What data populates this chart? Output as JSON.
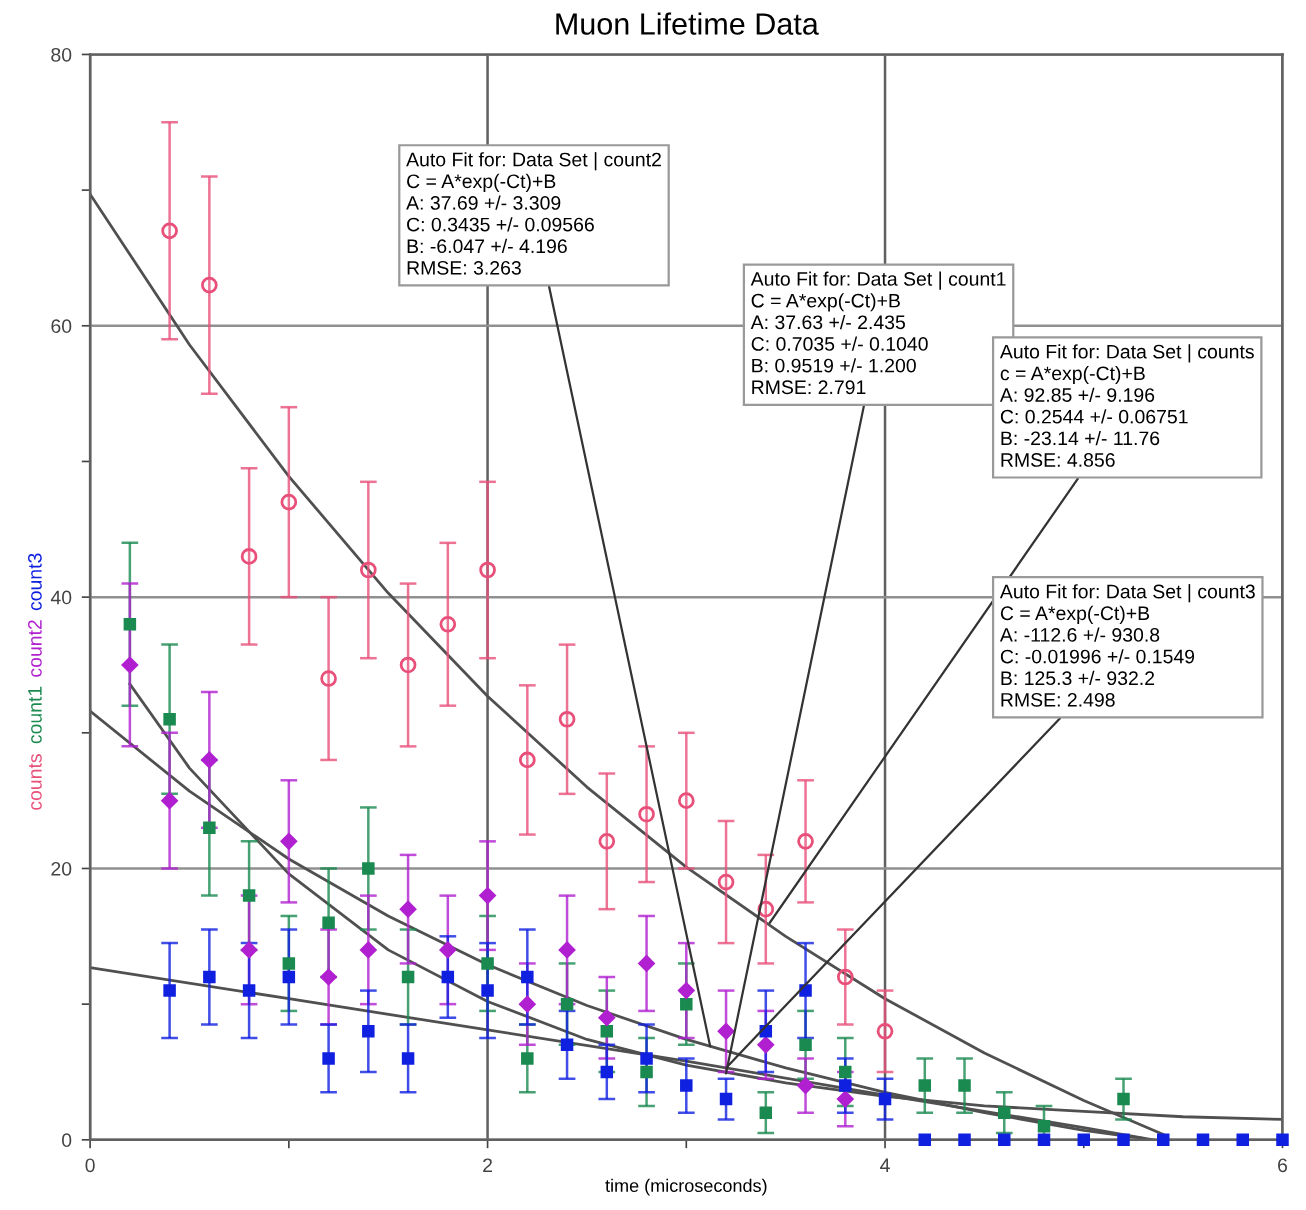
{
  "chart_data": {
    "type": "scatter",
    "title": "Muon Lifetime Data",
    "xlabel": "time (microseconds)",
    "xlim": [
      0,
      6
    ],
    "ylim": [
      0,
      80
    ],
    "xticks": [
      0,
      {
        "value": 1,
        "label": null
      },
      2,
      {
        "value": 3,
        "label": null
      },
      4,
      {
        "value": 5,
        "label": null
      },
      6
    ],
    "yticks": [
      0,
      {
        "value": 10,
        "label": null
      },
      20,
      {
        "value": 30,
        "label": null
      },
      40,
      {
        "value": 50,
        "label": null
      },
      60,
      {
        "value": 70,
        "label": null
      },
      80
    ],
    "grid": true,
    "legend": false,
    "series": [
      {
        "name": "counts",
        "color": "#e8507a",
        "marker": "circle",
        "x": [
          0.4,
          0.6,
          0.8,
          1.0,
          1.2,
          1.4,
          1.6,
          1.8,
          2.0,
          2.2,
          2.4,
          2.6,
          2.8,
          3.0,
          3.2,
          3.4,
          3.6,
          3.8,
          4.0
        ],
        "values": [
          67,
          63,
          43,
          47,
          34,
          42,
          35,
          38,
          42,
          28,
          31,
          22,
          24,
          25,
          19,
          17,
          22,
          12,
          8
        ],
        "errors": [
          8,
          8,
          6.5,
          7,
          6,
          6.5,
          6,
          6,
          6.5,
          5.5,
          5.5,
          5,
          5,
          5,
          4.5,
          4,
          4.5,
          3.5,
          3
        ]
      },
      {
        "name": "count1",
        "color": "#1a8a50",
        "marker": "square",
        "x": [
          0.2,
          0.4,
          0.6,
          0.8,
          1.0,
          1.2,
          1.4,
          1.6,
          1.8,
          2.0,
          2.2,
          2.4,
          2.6,
          2.8,
          3.0,
          3.2,
          3.4,
          3.6,
          3.8,
          4.0,
          4.2,
          4.4,
          4.6,
          4.8,
          5.0,
          5.2
        ],
        "values": [
          38,
          31,
          23,
          18,
          13,
          16,
          20,
          12,
          null,
          13,
          6,
          10,
          8,
          5,
          10,
          null,
          2,
          7,
          5,
          null,
          4,
          4,
          2,
          1,
          null,
          3
        ],
        "errors": [
          6,
          5.5,
          5,
          4,
          3.5,
          4,
          4.5,
          3.5,
          null,
          3.5,
          2.5,
          3,
          3,
          2.5,
          3,
          null,
          1.5,
          2.5,
          2.5,
          null,
          2,
          2,
          1.5,
          1.5,
          null,
          1.5
        ]
      },
      {
        "name": "count2",
        "color": "#b020d0",
        "marker": "diamond",
        "x": [
          0.2,
          0.4,
          0.6,
          0.8,
          1.0,
          1.2,
          1.4,
          1.6,
          1.8,
          2.0,
          2.2,
          2.4,
          2.6,
          2.8,
          3.0,
          3.2,
          3.4,
          3.6,
          3.8
        ],
        "values": [
          35,
          25,
          28,
          14,
          22,
          12,
          14,
          17,
          14,
          18,
          10,
          14,
          9,
          13,
          11,
          8,
          7,
          4,
          3
        ],
        "errors": [
          6,
          5,
          5,
          4,
          4.5,
          3.5,
          4,
          4,
          4,
          4,
          3,
          4,
          3,
          3.5,
          3.5,
          3,
          2.5,
          2,
          2
        ]
      },
      {
        "name": "count3",
        "color": "#1020e0",
        "marker": "square",
        "x": [
          0.4,
          0.6,
          0.8,
          1.0,
          1.2,
          1.4,
          1.6,
          1.8,
          2.0,
          2.2,
          2.4,
          2.6,
          2.8,
          3.0,
          3.2,
          3.4,
          3.6,
          3.8,
          4.0,
          4.2,
          4.4,
          4.6,
          4.8,
          5.0,
          5.2,
          5.4,
          5.6,
          5.8,
          6.0
        ],
        "values": [
          11,
          12,
          11,
          12,
          6,
          8,
          6,
          12,
          11,
          12,
          7,
          5,
          6,
          4,
          3,
          8,
          11,
          4,
          3,
          0,
          0,
          0,
          0,
          0,
          0,
          0,
          0,
          0,
          0
        ],
        "errors": [
          3.5,
          3.5,
          3.5,
          3.5,
          2.5,
          3,
          2.5,
          3,
          3.5,
          3.5,
          2.5,
          2,
          2.5,
          2,
          1.5,
          3,
          3.5,
          2,
          1.5,
          null,
          null,
          null,
          null,
          null,
          null,
          null,
          null,
          null,
          null
        ]
      },
      {
        "type": "line",
        "color": "#505050",
        "x": [
          0,
          0.5,
          1,
          1.5,
          2,
          2.5,
          3,
          3.5,
          4,
          4.5,
          5,
          5.4
        ],
        "values": [
          69.7,
          58.6,
          48.9,
          40.3,
          32.7,
          26.0,
          20.1,
          15.0,
          10.4,
          6.4,
          2.9,
          0.4
        ]
      },
      {
        "type": "line",
        "color": "#505050",
        "x": [
          0.2,
          0.5,
          1,
          1.5,
          2,
          2.5,
          3,
          3.5,
          4,
          4.5,
          5,
          5.5,
          6
        ],
        "values": [
          33.6,
          27.4,
          19.6,
          14.0,
          10.2,
          7.4,
          5.5,
          4.2,
          3.2,
          2.5,
          2.1,
          1.7,
          1.5
        ]
      },
      {
        "type": "line",
        "color": "#505050",
        "x": [
          0,
          0.5,
          1,
          1.5,
          2,
          2.5,
          3,
          3.5,
          4,
          4.5,
          5,
          5.3
        ],
        "values": [
          31.6,
          25.7,
          20.7,
          16.5,
          12.9,
          9.9,
          7.4,
          5.3,
          3.5,
          2.0,
          0.7,
          0.1
        ]
      },
      {
        "type": "line",
        "color": "#505050",
        "x": [
          0,
          1,
          2,
          3,
          4,
          5,
          5.35
        ],
        "values": [
          12.7,
          10.4,
          8.1,
          5.8,
          3.3,
          0.9,
          0.0
        ]
      }
    ],
    "annotations": [
      {
        "text": "Auto Fit for: Data Set | count2\nC = A*exp(-Ct)+B\nA: 37.69 +/- 3.309\nC: 0.3435 +/- 0.09566\nB: -6.047 +/- 4.196\nRMSE: 3.263",
        "x": 3.12,
        "y": 6.9
      },
      {
        "text": "Auto Fit for: Data Set | count1\nC = A*exp(-Ct)+B\nA: 37.63 +/- 2.435\nC: 0.7035 +/- 0.1040\nB: 0.9519 +/- 1.200\nRMSE: 2.791",
        "x": 3.2,
        "y": 4.9
      },
      {
        "text": "Auto Fit for: Data Set | counts\nc = A*exp(-Ct)+B\nA: 92.85 +/- 9.196\nC: 0.2544 +/- 0.06751\nB: -23.14 +/- 11.76\nRMSE: 4.856",
        "x": 3.42,
        "y": 16.0
      },
      {
        "text": "Auto Fit for: Data Set | count3\nC = A*exp(-Ct)+B\nA: -112.6 +/- 930.8\nC: -0.01996 +/- 0.1549\nB: 125.3 +/- 932.2\nRMSE: 2.498",
        "x": 3.2,
        "y": 5.3
      }
    ]
  }
}
